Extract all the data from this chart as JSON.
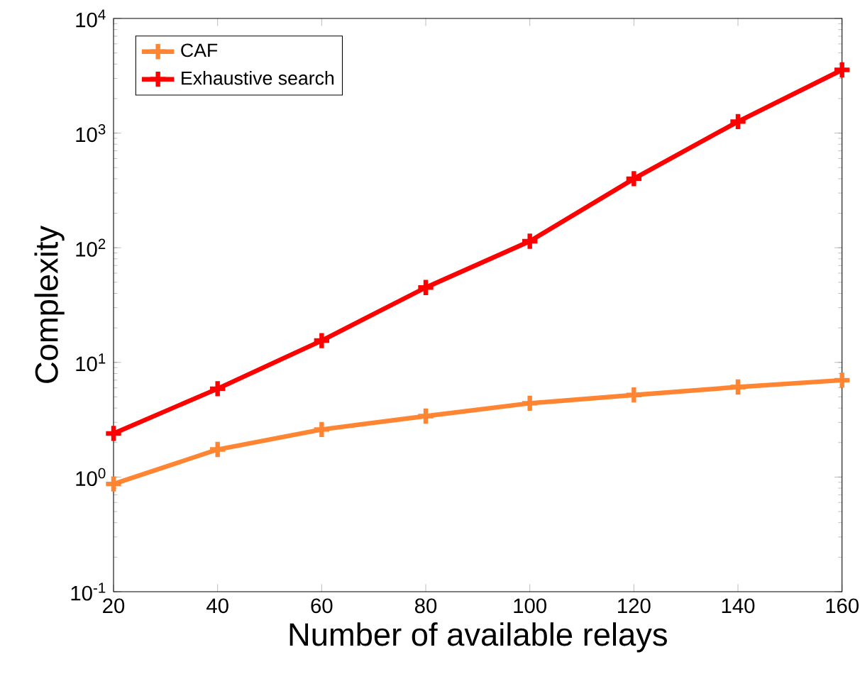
{
  "chart_data": {
    "type": "line",
    "xlabel": "Number of available relays",
    "ylabel": "Complexity",
    "x": [
      20,
      40,
      60,
      80,
      100,
      120,
      140,
      160
    ],
    "series": [
      {
        "name": "CAF",
        "color": "#ff8533",
        "values": [
          0.87,
          1.74,
          2.6,
          3.4,
          4.4,
          5.2,
          6.1,
          7.0
        ]
      },
      {
        "name": "Exhaustive search",
        "color": "#ff0000",
        "values": [
          2.4,
          5.9,
          15.5,
          45,
          114,
          400,
          1260,
          3560
        ]
      }
    ],
    "xlim": [
      20,
      160
    ],
    "xticks": [
      20,
      40,
      60,
      80,
      100,
      120,
      140,
      160
    ],
    "ylim": [
      0.1,
      10000
    ],
    "yticks": [
      {
        "value": 0.1,
        "label": "10$^{-1}$"
      },
      {
        "value": 1,
        "label": "10$^{0}$"
      },
      {
        "value": 10,
        "label": "10$^{1}$"
      },
      {
        "value": 100,
        "label": "10$^{2}$"
      },
      {
        "value": 1000,
        "label": "10$^{3}$"
      },
      {
        "value": 10000,
        "label": "10$^{4}$"
      }
    ],
    "log": "y",
    "grid": false,
    "legend": "top left",
    "marker": "cross",
    "line_style": "solid"
  }
}
